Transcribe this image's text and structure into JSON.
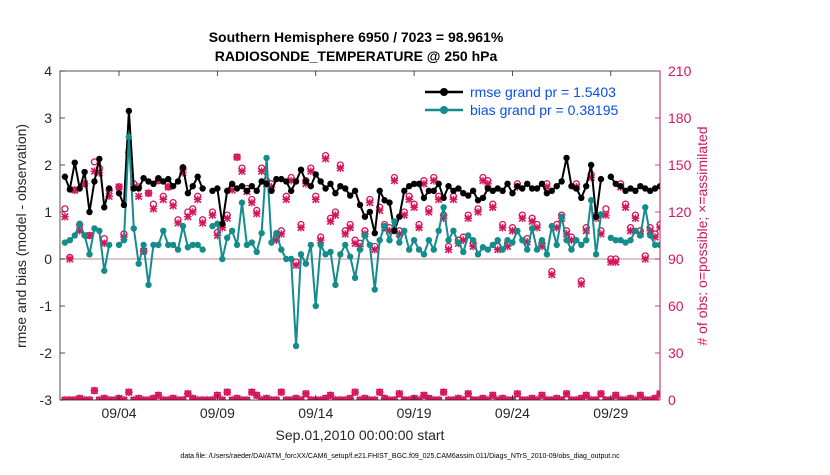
{
  "chart_data": {
    "type": "line",
    "title": "Southern Hemisphere 6950 / 7023 = 98.961%",
    "subtitle": "RADIOSONDE_TEMPERATURE @ 250 hPa",
    "xlabel": "Sep.01,2010 00:00:00 start",
    "ylabel": "rmse and bias (model - observation)",
    "y2label": "# of obs: o=possible; ×=assimilated",
    "footer": "data file: /Users/raeder/DAI/ATM_forcXX/CAM6_setup/f.e21.FHIST_BGC.f09_025.CAM6assim.011/Diags_NTrS_2010-09/obs_diag_output.nc",
    "xlim": [
      0,
      30.5
    ],
    "ylim": [
      -3,
      4
    ],
    "y2lim": [
      0,
      210
    ],
    "xticks": [
      3,
      8,
      13,
      18,
      23,
      28
    ],
    "xtick_labels": [
      "09/04",
      "09/09",
      "09/14",
      "09/19",
      "09/24",
      "09/29"
    ],
    "yticks": [
      -3,
      -2,
      -1,
      0,
      1,
      2,
      3,
      4
    ],
    "y2ticks": [
      0,
      30,
      60,
      90,
      120,
      150,
      180,
      210
    ],
    "legend_position": "top-right",
    "grid": false,
    "colors": {
      "rmse": "#000000",
      "bias": "#148c8c",
      "obs": "#d6145b",
      "zero_line": "#c8a0a8"
    },
    "x_step_days": 0.25,
    "series": [
      {
        "name": "rmse grand pr = 1.5403",
        "axis": "left",
        "values": [
          1.75,
          1.48,
          2.05,
          1.5,
          1.85,
          1.0,
          1.65,
          2.13,
          1.1,
          1.5,
          null,
          1.4,
          1.15,
          3.15,
          1.5,
          1.5,
          1.72,
          1.65,
          1.6,
          1.72,
          1.65,
          1.7,
          1.55,
          1.65,
          1.95,
          1.4,
          1.55,
          1.75,
          1.5,
          null,
          1.45,
          1.5,
          0.75,
          1.45,
          1.6,
          1.5,
          1.55,
          1.45,
          1.55,
          1.45,
          1.65,
          1.6,
          1.45,
          1.7,
          1.7,
          1.65,
          1.45,
          1.65,
          1.9,
          1.65,
          1.55,
          1.8,
          1.65,
          1.5,
          1.6,
          1.4,
          1.55,
          1.5,
          1.35,
          1.45,
          1.15,
          0.9,
          1.0,
          0.55,
          1.45,
          1.25,
          1.2,
          0.6,
          0.9,
          1.45,
          1.55,
          1.6,
          1.6,
          1.3,
          1.45,
          1.45,
          1.6,
          1.3,
          1.55,
          1.45,
          1.5,
          1.4,
          1.35,
          1.45,
          1.25,
          1.3,
          1.5,
          1.45,
          1.5,
          1.45,
          1.6,
          1.4,
          1.55,
          1.5,
          1.6,
          1.5,
          1.5,
          1.6,
          1.4,
          1.45,
          1.55,
          1.65,
          2.15,
          1.55,
          1.5,
          1.3,
          1.55,
          2.0,
          0.9,
          1.7,
          null,
          1.75,
          1.6,
          1.55,
          1.45,
          1.5,
          1.45,
          1.55,
          1.5,
          1.45,
          1.5,
          1.55
        ]
      },
      {
        "name": "bias grand pr = 0.38195",
        "axis": "left",
        "values": [
          0.35,
          0.4,
          0.5,
          0.75,
          0.5,
          0.1,
          0.65,
          0.6,
          -0.25,
          0.3,
          null,
          0.3,
          0.4,
          2.6,
          0.65,
          -0.1,
          0.3,
          -0.55,
          0.3,
          0.3,
          0.6,
          0.3,
          0.3,
          0.2,
          0.7,
          0.25,
          0.3,
          0.3,
          0.2,
          null,
          0.7,
          0.75,
          0.0,
          0.45,
          0.6,
          0.3,
          1.2,
          0.3,
          0.35,
          0.15,
          0.55,
          2.15,
          0.35,
          0.55,
          0.2,
          0.0,
          0.0,
          -1.85,
          0.1,
          -0.1,
          0.3,
          -1.0,
          0.3,
          0.1,
          0.15,
          -0.55,
          0.1,
          0.3,
          0.05,
          -0.4,
          0.2,
          0.5,
          0.3,
          -0.65,
          0.4,
          0.7,
          0.4,
          0.8,
          0.35,
          0.6,
          0.2,
          0.4,
          0.2,
          0.1,
          0.4,
          0.2,
          0.6,
          1.1,
          0.4,
          0.6,
          0.35,
          0.15,
          0.5,
          0.4,
          0.1,
          0.25,
          0.2,
          0.3,
          0.4,
          0.2,
          0.4,
          0.35,
          0.6,
          0.4,
          0.2,
          0.65,
          0.2,
          0.4,
          0.1,
          0.7,
          0.3,
          0.9,
          0.4,
          0.2,
          0.4,
          0.3,
          0.4,
          1.25,
          0.1,
          0.95,
          null,
          0.45,
          0.4,
          0.4,
          0.35,
          0.4,
          0.6,
          0.5,
          1.1,
          0.5,
          0.3,
          0.3
        ]
      },
      {
        "name": "obs possible",
        "axis": "right",
        "marker": "circle",
        "values": [
          122,
          91,
          134,
          112,
          138,
          105,
          152,
          148,
          103,
          134,
          null,
          136,
          106,
          158,
          138,
          136,
          95,
          132,
          125,
          140,
          130,
          136,
          126,
          115,
          148,
          120,
          122,
          130,
          115,
          null,
          120,
          107,
          112,
          118,
          136,
          155,
          148,
          135,
          128,
          121,
          148,
          140,
          138,
          104,
          108,
          130,
          142,
          88,
          112,
          140,
          148,
          130,
          104,
          156,
          116,
          120,
          150,
          108,
          112,
          102,
          100,
          108,
          128,
          98,
          123,
          112,
          110,
          142,
          108,
          120,
          130,
          125,
          112,
          140,
          122,
          142,
          130,
          118,
          98,
          130,
          102,
          104,
          118,
          100,
          122,
          142,
          140,
          125,
          98,
          112,
          100,
          110,
          138,
          118,
          103,
          116,
          112,
          100,
          138,
          82,
          112,
          118,
          108,
          104,
          138,
          76,
          110,
          144,
          118,
          108,
          122,
          90,
          90,
          138,
          125,
          110,
          118,
          108,
          92,
          110,
          106,
          112,
          90,
          88
        ]
      },
      {
        "name": "obs assimilated",
        "axis": "right",
        "marker": "cross",
        "values": [
          117,
          90,
          134,
          108,
          138,
          105,
          146,
          145,
          100,
          130,
          null,
          136,
          104,
          158,
          136,
          130,
          95,
          132,
          122,
          140,
          128,
          136,
          124,
          113,
          145,
          117,
          120,
          128,
          113,
          null,
          118,
          105,
          110,
          116,
          134,
          155,
          146,
          133,
          126,
          119,
          146,
          138,
          136,
          102,
          106,
          128,
          140,
          86,
          110,
          138,
          146,
          128,
          102,
          154,
          114,
          118,
          148,
          106,
          110,
          100,
          98,
          106,
          126,
          96,
          121,
          110,
          108,
          140,
          106,
          118,
          128,
          123,
          110,
          138,
          120,
          140,
          128,
          116,
          96,
          128,
          100,
          102,
          116,
          98,
          120,
          140,
          138,
          123,
          96,
          110,
          98,
          108,
          136,
          116,
          101,
          114,
          110,
          98,
          136,
          80,
          110,
          116,
          106,
          102,
          136,
          74,
          108,
          142,
          116,
          106,
          118,
          88,
          88,
          136,
          123,
          108,
          116,
          106,
          90,
          108,
          104,
          110,
          88,
          86
        ]
      },
      {
        "name": "obs possible (near zero)",
        "axis": "right",
        "marker": "circle",
        "values": [
          0,
          0,
          0,
          1,
          0,
          0,
          6,
          0,
          1,
          0,
          0,
          1,
          0,
          5,
          0,
          1,
          0,
          0,
          1,
          3,
          0,
          0,
          1,
          0,
          0,
          4,
          1,
          0,
          0,
          0,
          0,
          3,
          0,
          5,
          0,
          1,
          0,
          0,
          5,
          3,
          0,
          1,
          0,
          0,
          5,
          0,
          0,
          1,
          0,
          4,
          0,
          0,
          0,
          1,
          3,
          0,
          0,
          0,
          1,
          5,
          0,
          1,
          0,
          0,
          5,
          1,
          0,
          0,
          4,
          0,
          0,
          1,
          0,
          3,
          1,
          0,
          0,
          5,
          0,
          0,
          1,
          0,
          4,
          0,
          0,
          1,
          0,
          3,
          0,
          1,
          0,
          0,
          4,
          0,
          0,
          1,
          0,
          3,
          0,
          0,
          1,
          0,
          4,
          0,
          0,
          1,
          3,
          0,
          0,
          4,
          0,
          0,
          3,
          0,
          0,
          1,
          0,
          3,
          0,
          0,
          1,
          4,
          0,
          0
        ]
      },
      {
        "name": "obs assimilated (near zero)",
        "axis": "right",
        "marker": "cross",
        "values": [
          0,
          0,
          0,
          1,
          0,
          0,
          6,
          0,
          1,
          0,
          0,
          1,
          0,
          5,
          0,
          1,
          0,
          0,
          1,
          3,
          0,
          0,
          1,
          0,
          0,
          4,
          1,
          0,
          0,
          0,
          0,
          3,
          0,
          5,
          0,
          1,
          0,
          0,
          5,
          3,
          0,
          1,
          0,
          0,
          5,
          0,
          0,
          1,
          0,
          4,
          0,
          0,
          0,
          1,
          3,
          0,
          0,
          0,
          1,
          5,
          0,
          1,
          0,
          0,
          5,
          1,
          0,
          0,
          4,
          0,
          0,
          1,
          0,
          3,
          1,
          0,
          0,
          5,
          0,
          0,
          1,
          0,
          4,
          0,
          0,
          1,
          0,
          3,
          0,
          1,
          0,
          0,
          4,
          0,
          0,
          1,
          0,
          3,
          0,
          0,
          1,
          0,
          4,
          0,
          0,
          1,
          3,
          0,
          0,
          4,
          0,
          0,
          3,
          0,
          0,
          1,
          0,
          3,
          0,
          0,
          1,
          4,
          0,
          0
        ]
      }
    ]
  }
}
